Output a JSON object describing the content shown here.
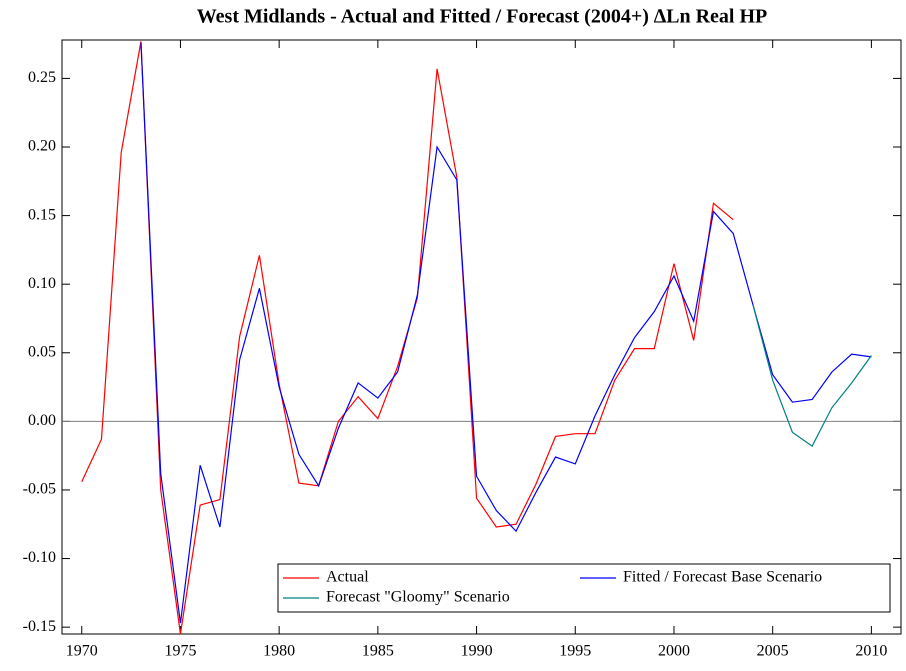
{
  "chart_data": {
    "type": "line",
    "title": "West Midlands - Actual and Fitted / Forecast (2004+) ∆Ln Real HP",
    "x": [
      1970,
      1971,
      1972,
      1973,
      1974,
      1975,
      1976,
      1977,
      1978,
      1979,
      1980,
      1981,
      1982,
      1983,
      1984,
      1985,
      1986,
      1987,
      1988,
      1989,
      1990,
      1991,
      1992,
      1993,
      1994,
      1995,
      1996,
      1997,
      1998,
      1999,
      2000,
      2001,
      2002,
      2003,
      2004,
      2005,
      2006,
      2007,
      2008,
      2009,
      2010
    ],
    "series": [
      {
        "name": "Actual",
        "color": "#ff0000",
        "values": [
          -0.044,
          -0.013,
          0.196,
          0.277,
          -0.05,
          -0.155,
          -0.061,
          -0.057,
          0.062,
          0.121,
          0.027,
          -0.045,
          -0.047,
          0.0,
          0.018,
          0.002,
          0.04,
          0.09,
          0.257,
          0.178,
          -0.056,
          -0.077,
          -0.075,
          -0.046,
          -0.011,
          -0.009,
          -0.009,
          0.03,
          0.053,
          0.053,
          0.115,
          0.059,
          0.159,
          0.147,
          null,
          null,
          null,
          null,
          null,
          null,
          null
        ]
      },
      {
        "name": "Fitted / Forecast Base Scenario",
        "color": "#0000ff",
        "values": [
          null,
          null,
          null,
          0.276,
          -0.038,
          -0.147,
          -0.032,
          -0.077,
          0.045,
          0.097,
          0.025,
          -0.024,
          -0.047,
          -0.005,
          0.028,
          0.017,
          0.036,
          0.092,
          0.2,
          0.176,
          -0.04,
          -0.065,
          -0.08,
          -0.052,
          -0.026,
          -0.031,
          0.004,
          0.034,
          0.061,
          0.08,
          0.106,
          0.073,
          0.153,
          0.137,
          0.085,
          0.034,
          0.014,
          0.016,
          0.036,
          0.049,
          0.047
        ]
      },
      {
        "name": "Forecast \"Gloomy\" Scenario",
        "color": "#008080",
        "values": [
          null,
          null,
          null,
          null,
          null,
          null,
          null,
          null,
          null,
          null,
          null,
          null,
          null,
          null,
          null,
          null,
          null,
          null,
          null,
          null,
          null,
          null,
          null,
          null,
          null,
          null,
          null,
          null,
          null,
          null,
          null,
          null,
          null,
          null,
          0.085,
          0.03,
          -0.008,
          -0.018,
          0.01,
          0.028,
          0.048
        ]
      }
    ],
    "xlim": [
      1969,
      2011.5
    ],
    "xticks": [
      1970,
      1975,
      1980,
      1985,
      1990,
      1995,
      2000,
      2005,
      2010
    ],
    "ylim": [
      -0.155,
      0.278
    ],
    "yticks": [
      -0.15,
      {
        "value": -0.1,
        "label": "-0.10"
      },
      -0.05,
      {
        "value": 0,
        "label": "0.00"
      },
      0.05,
      {
        "value": 0.1,
        "label": "0.10"
      },
      0.15,
      {
        "value": 0.2,
        "label": "0.20"
      },
      0.25
    ]
  }
}
